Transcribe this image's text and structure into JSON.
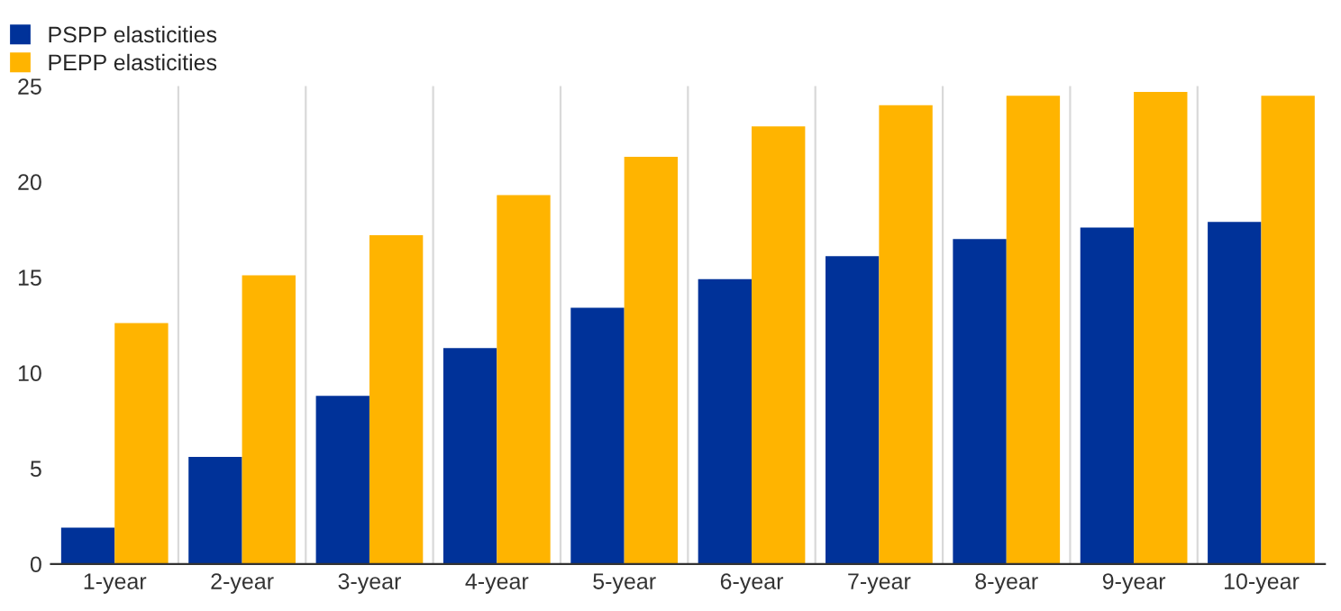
{
  "chart_data": {
    "type": "bar",
    "categories": [
      "1-year",
      "2-year",
      "3-year",
      "4-year",
      "5-year",
      "6-year",
      "7-year",
      "8-year",
      "9-year",
      "10-year"
    ],
    "series": [
      {
        "name": "PSPP elasticities",
        "color": "#003299",
        "values": [
          1.9,
          5.6,
          8.8,
          11.3,
          13.4,
          14.9,
          16.1,
          17.0,
          17.6,
          17.9
        ]
      },
      {
        "name": "PEPP elasticities",
        "color": "#ffb400",
        "values": [
          12.6,
          15.1,
          17.2,
          19.3,
          21.3,
          22.9,
          24.0,
          24.5,
          24.7,
          24.5
        ]
      }
    ],
    "ylim": [
      0,
      25
    ],
    "yticks": [
      0,
      5,
      10,
      15,
      20,
      25
    ],
    "grid": "x",
    "legend": "top left"
  }
}
